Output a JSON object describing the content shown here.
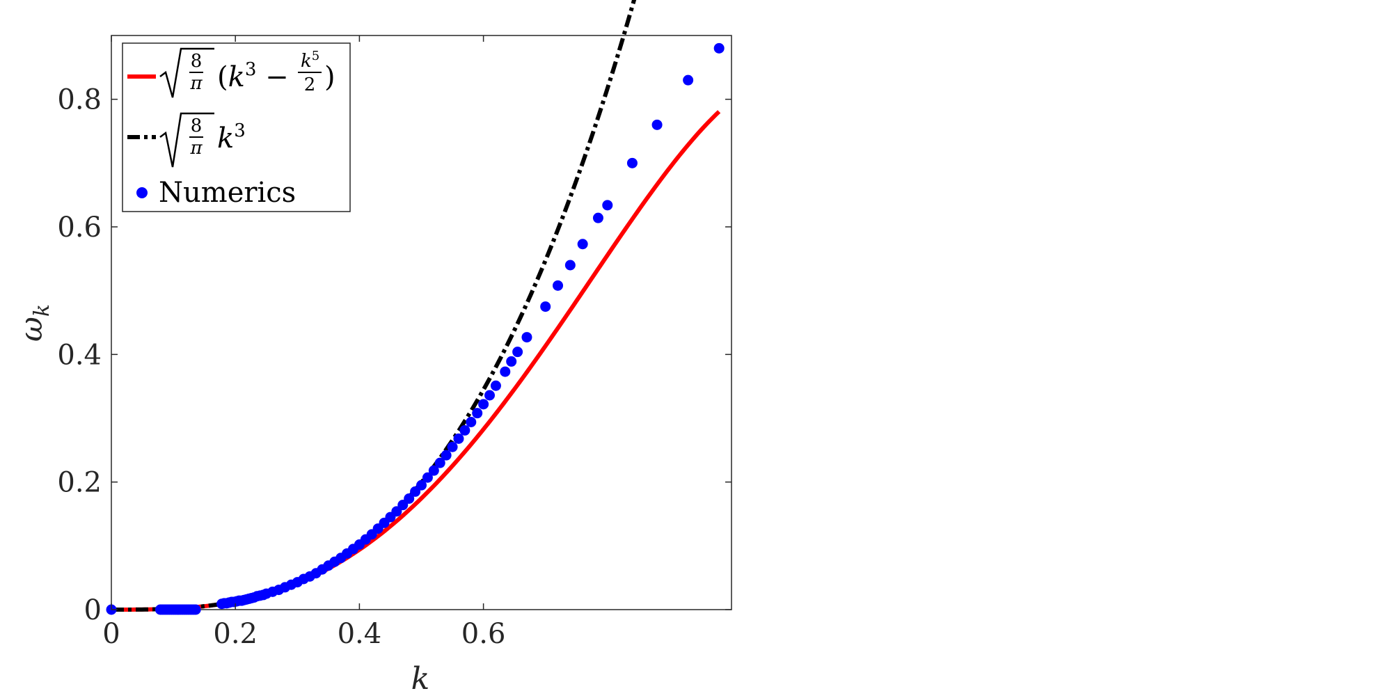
{
  "chart_data": {
    "type": "line",
    "xlabel": "k",
    "ylabel": "ω_k",
    "xlim": [
      0,
      1.0
    ],
    "ylim": [
      0,
      0.9
    ],
    "xticks": [
      0,
      0.2,
      0.4,
      0.6
    ],
    "xtick_labels": [
      "0",
      "0.2",
      "0.4",
      "0.6"
    ],
    "yticks": [
      0,
      0.2,
      0.4,
      0.6,
      0.8
    ],
    "ytick_labels": [
      "0",
      "0.2",
      "0.4",
      "0.6",
      "0.8"
    ],
    "grid": false,
    "legend_position": "top-left",
    "series": [
      {
        "name": "√(8/π)(k³ − k⁵/2)",
        "kind": "line",
        "style": "solid",
        "color": "#ff0000",
        "formula": "sqrt(8/pi)*(k^3 - k^5/2)",
        "x_range": [
          0,
          0.98
        ]
      },
      {
        "name": "√(8/π)k³",
        "kind": "line",
        "style": "dash-dot",
        "color": "#000000",
        "formula": "sqrt(8/pi)*k^3",
        "x_range": [
          0,
          0.98
        ]
      },
      {
        "name": "Numerics",
        "kind": "scatter",
        "color": "#0000ff",
        "x": [
          0,
          0.079,
          0.082,
          0.085,
          0.088,
          0.091,
          0.094,
          0.097,
          0.1,
          0.103,
          0.106,
          0.109,
          0.112,
          0.115,
          0.118,
          0.121,
          0.124,
          0.127,
          0.13,
          0.133,
          0.136,
          0.178,
          0.182,
          0.186,
          0.19,
          0.194,
          0.198,
          0.202,
          0.206,
          0.21,
          0.214,
          0.218,
          0.222,
          0.226,
          0.23,
          0.235,
          0.24,
          0.245,
          0.25,
          0.26,
          0.27,
          0.28,
          0.29,
          0.3,
          0.31,
          0.32,
          0.33,
          0.34,
          0.35,
          0.36,
          0.37,
          0.38,
          0.39,
          0.4,
          0.41,
          0.42,
          0.43,
          0.44,
          0.45,
          0.46,
          0.47,
          0.48,
          0.49,
          0.5,
          0.51,
          0.52,
          0.53,
          0.54,
          0.55,
          0.56,
          0.57,
          0.58,
          0.59,
          0.6,
          0.61,
          0.62,
          0.635,
          0.645,
          0.655,
          0.67,
          0.7,
          0.72,
          0.74,
          0.76,
          0.785,
          0.8,
          0.84,
          0.88,
          0.93,
          0.98
        ],
        "y": [
          0,
          0,
          0,
          0,
          0,
          0,
          0,
          0,
          0,
          0,
          0,
          0,
          0,
          0,
          0,
          0,
          0,
          0,
          0,
          0,
          0,
          0.009,
          0.01,
          0.01,
          0.011,
          0.012,
          0.012,
          0.013,
          0.014,
          0.014,
          0.015,
          0.016,
          0.017,
          0.018,
          0.019,
          0.021,
          0.022,
          0.023,
          0.025,
          0.028,
          0.031,
          0.035,
          0.039,
          0.043,
          0.048,
          0.052,
          0.057,
          0.063,
          0.069,
          0.075,
          0.081,
          0.088,
          0.095,
          0.102,
          0.11,
          0.118,
          0.127,
          0.136,
          0.145,
          0.154,
          0.164,
          0.174,
          0.185,
          0.195,
          0.207,
          0.218,
          0.23,
          0.242,
          0.255,
          0.268,
          0.281,
          0.294,
          0.308,
          0.322,
          0.336,
          0.351,
          0.373,
          0.389,
          0.404,
          0.427,
          0.475,
          0.508,
          0.54,
          0.573,
          0.614,
          0.634,
          0.7,
          0.76,
          0.83,
          0.88
        ]
      }
    ]
  },
  "legend": {
    "entries": [
      {
        "id": "exact",
        "prefix": "(k",
        "exp1": "3",
        "minus": " − ",
        "frac_num": "k",
        "frac_num_exp": "5",
        "frac_den": "2",
        "suffix": ")",
        "root_num": "8",
        "root_den": "π"
      },
      {
        "id": "approx",
        "base": "k",
        "exp": "3",
        "root_num": "8",
        "root_den": "π"
      },
      {
        "id": "numerics",
        "label": "Numerics"
      }
    ]
  }
}
